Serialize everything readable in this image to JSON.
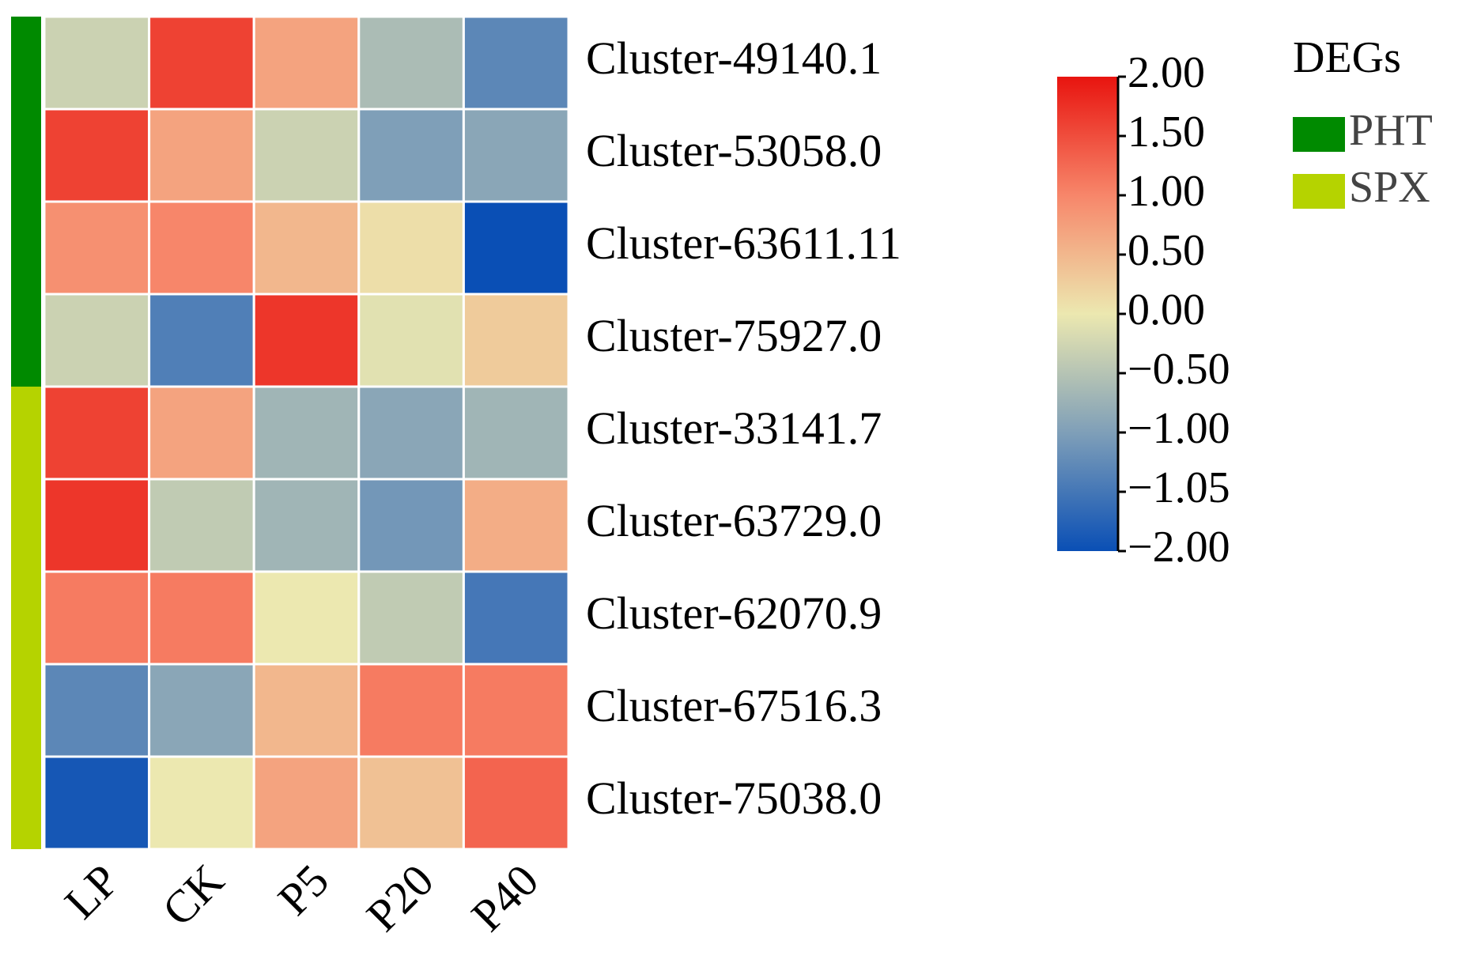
{
  "chart_data": {
    "type": "heatmap",
    "rows": [
      "Cluster-49140.1",
      "Cluster-53058.0",
      "Cluster-63611.11",
      "Cluster-75927.0",
      "Cluster-33141.7",
      "Cluster-63729.0",
      "Cluster-62070.9",
      "Cluster-67516.3",
      "Cluster-75038.0"
    ],
    "columns": [
      "LP",
      "CK",
      "P5",
      "P20",
      "P40"
    ],
    "values": [
      [
        -0.3,
        1.6,
        0.7,
        -0.6,
        -1.3
      ],
      [
        1.6,
        0.7,
        -0.3,
        -1.0,
        -0.9
      ],
      [
        0.9,
        1.0,
        0.5,
        0.1,
        -2.0
      ],
      [
        -0.3,
        -1.4,
        1.7,
        -0.1,
        0.3
      ],
      [
        1.6,
        0.7,
        -0.7,
        -0.9,
        -0.7
      ],
      [
        1.7,
        -0.4,
        -0.7,
        -1.1,
        0.6
      ],
      [
        1.1,
        1.1,
        0.0,
        -0.4,
        -1.5
      ],
      [
        -1.3,
        -0.9,
        0.5,
        1.1,
        1.1
      ],
      [
        -1.9,
        0.0,
        0.7,
        0.4,
        1.3
      ]
    ],
    "zlim": [
      -2,
      2
    ],
    "colormap": [
      "#0a4fb5",
      "#7f9fb8",
      "#ece8b0",
      "#f7866a",
      "#e8140f"
    ],
    "zticks": [
      {
        "value": 2,
        "label": "2.00"
      },
      {
        "value": 1.5,
        "label": "1.50"
      },
      {
        "value": 1,
        "label": "1.00"
      },
      {
        "value": 0.5,
        "label": "0.50"
      },
      {
        "value": 0,
        "label": "0.00"
      },
      {
        "value": -0.5,
        "label": "−0.50"
      },
      {
        "value": -1,
        "label": "−1.00"
      },
      {
        "value": -1.05,
        "label": "−1.05"
      },
      {
        "value": -2,
        "label": "−2.00"
      }
    ],
    "groups": {
      "title": "DEGs",
      "items": [
        {
          "name": "PHT",
          "color": "#008a00",
          "rows": [
            0,
            1,
            2,
            3
          ]
        },
        {
          "name": "SPX",
          "color": "#b5d300",
          "rows": [
            4,
            5,
            6,
            7,
            8
          ]
        }
      ]
    }
  }
}
